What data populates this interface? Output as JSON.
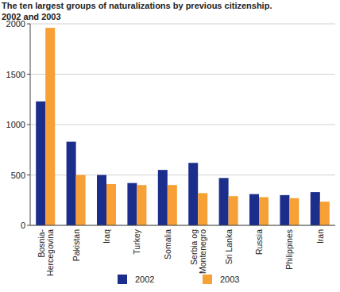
{
  "chart_data": {
    "type": "bar",
    "title": "The ten largest groups of naturalizations by previous citizenship.",
    "subtitle": "2002 and 2003",
    "categories": [
      "Bosnia-Hercegovina",
      "Pakistan",
      "Iraq",
      "Turkey",
      "Somalia",
      "Serbia og Montenegro",
      "Sri Lanka",
      "Russia",
      "Philippines",
      "Iran"
    ],
    "series": [
      {
        "name": "2002",
        "color": "#1c2e8c",
        "values": [
          1230,
          830,
          500,
          420,
          550,
          620,
          470,
          310,
          300,
          330
        ]
      },
      {
        "name": "2003",
        "color": "#f7a035",
        "values": [
          1960,
          500,
          410,
          400,
          400,
          320,
          290,
          280,
          270,
          235
        ]
      }
    ],
    "ylim": [
      0,
      2000
    ],
    "yticks": [
      0,
      500,
      1000,
      1500,
      2000
    ],
    "grid": true,
    "legend": "bottom"
  }
}
